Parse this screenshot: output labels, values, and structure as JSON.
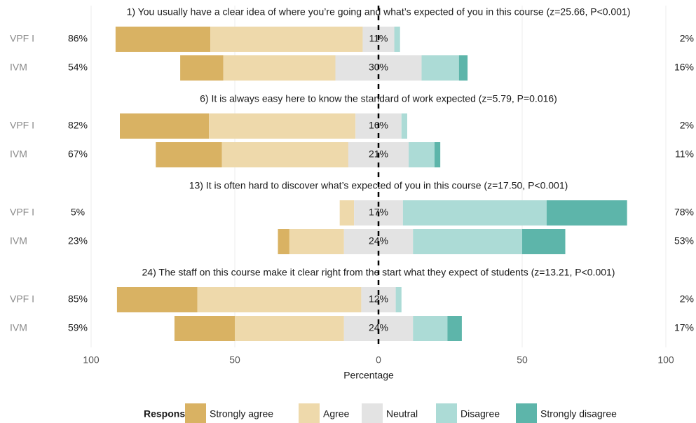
{
  "chart_data": {
    "type": "likert",
    "questions": [
      "1) You usually have a clear idea of where you’re going and what’s expected of you in this course (z=25.66, P<0.001)",
      "6) It is always easy here to know the standard of work expected (z=5.79, P=0.016)",
      "13) It is often hard to discover what’s expected of you in this course (z=17.50, P<0.001)",
      "24) The staff on this course make it clear right from the start what they expect of students (z=13.21, P<0.001)"
    ],
    "groups": [
      "VPF I",
      "IVM",
      "VPF I",
      "IVM",
      "VPF I",
      "IVM",
      "VPF I",
      "IVM"
    ],
    "series": [
      {
        "name": "Strongly agree",
        "color": "#d9b263",
        "values": [
          33,
          15,
          31,
          23,
          0,
          4,
          28,
          21
        ]
      },
      {
        "name": "Agree",
        "color": "#eed9ab",
        "values": [
          53,
          39,
          51,
          44,
          5,
          19,
          57,
          38
        ]
      },
      {
        "name": "Neutral",
        "color": "#e3e3e3",
        "values": [
          11,
          30,
          16,
          21,
          17,
          24,
          12,
          24
        ]
      },
      {
        "name": "Disagree",
        "color": "#acdbd6",
        "values": [
          2,
          13,
          2,
          9,
          50,
          38,
          2,
          12
        ]
      },
      {
        "name": "Strongly disagree",
        "color": "#5db5aa",
        "values": [
          0,
          3,
          0,
          2,
          28,
          15,
          0,
          5
        ]
      }
    ],
    "left_labels": [
      "86%",
      "54%",
      "82%",
      "67%",
      "5%",
      "23%",
      "85%",
      "59%"
    ],
    "center_labels": [
      "11%",
      "30%",
      "16%",
      "21%",
      "17%",
      "24%",
      "12%",
      "24%"
    ],
    "right_labels": [
      "2%",
      "16%",
      "2%",
      "11%",
      "78%",
      "53%",
      "2%",
      "17%"
    ],
    "xlim": [
      -100,
      100
    ],
    "xticks": [
      {
        "value": -100,
        "label": "100"
      },
      {
        "value": -50,
        "label": "50"
      },
      0,
      50,
      100
    ],
    "xlabel": "Percentage",
    "legend_title": "Response",
    "grid": true
  }
}
